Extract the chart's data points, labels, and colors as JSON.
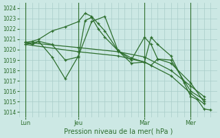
{
  "bg_color": "#cce8e4",
  "grid_color": "#a8ccc8",
  "line_color": "#2d6e2d",
  "title": "Pression niveau de la mer( hPa )",
  "ylabel_ticks": [
    1014,
    1015,
    1016,
    1017,
    1018,
    1019,
    1020,
    1021,
    1022,
    1023,
    1024
  ],
  "ylim": [
    1013.5,
    1024.5
  ],
  "day_labels": [
    "Lun",
    "Jeu",
    "Mar",
    "Mer"
  ],
  "day_positions": [
    1,
    9,
    19,
    26
  ],
  "xlim": [
    0,
    30
  ],
  "lines": [
    {
      "x": [
        1,
        2,
        3,
        5,
        7,
        9,
        10,
        11,
        12,
        13,
        15,
        17,
        19,
        20,
        21,
        23,
        26,
        28
      ],
      "y": [
        1020.7,
        1020.8,
        1021.0,
        1021.8,
        1022.2,
        1022.7,
        1023.5,
        1023.2,
        1022.5,
        1021.8,
        1019.9,
        1019.0,
        1021.2,
        1020.5,
        1019.1,
        1018.7,
        1016.8,
        1015.0
      ]
    },
    {
      "x": [
        1,
        2,
        3,
        5,
        7,
        9,
        10,
        11,
        12,
        13,
        15,
        17,
        19,
        20,
        21,
        23,
        26,
        28
      ],
      "y": [
        1020.7,
        1020.5,
        1020.8,
        1020.5,
        1019.0,
        1019.3,
        1022.8,
        1023.1,
        1022.0,
        1021.2,
        1019.9,
        1019.2,
        1018.8,
        1018.5,
        1019.1,
        1019.0,
        1016.0,
        1015.2
      ]
    },
    {
      "x": [
        1,
        9,
        15,
        19,
        23,
        26,
        28
      ],
      "y": [
        1020.7,
        1020.2,
        1019.8,
        1019.3,
        1018.0,
        1016.5,
        1015.5
      ]
    },
    {
      "x": [
        1,
        9,
        15,
        19,
        23,
        26,
        28
      ],
      "y": [
        1020.5,
        1019.8,
        1019.4,
        1018.8,
        1017.5,
        1015.8,
        1014.8
      ]
    },
    {
      "x": [
        1,
        3,
        5,
        7,
        9,
        11,
        13,
        15,
        17,
        19,
        20,
        21,
        23,
        25,
        26,
        27,
        28,
        29
      ],
      "y": [
        1020.5,
        1020.8,
        1019.3,
        1017.2,
        1019.4,
        1022.7,
        1023.2,
        1019.9,
        1018.7,
        1018.8,
        1021.2,
        1020.5,
        1019.4,
        1016.8,
        1015.5,
        1015.2,
        1014.3,
        1014.2
      ]
    }
  ]
}
